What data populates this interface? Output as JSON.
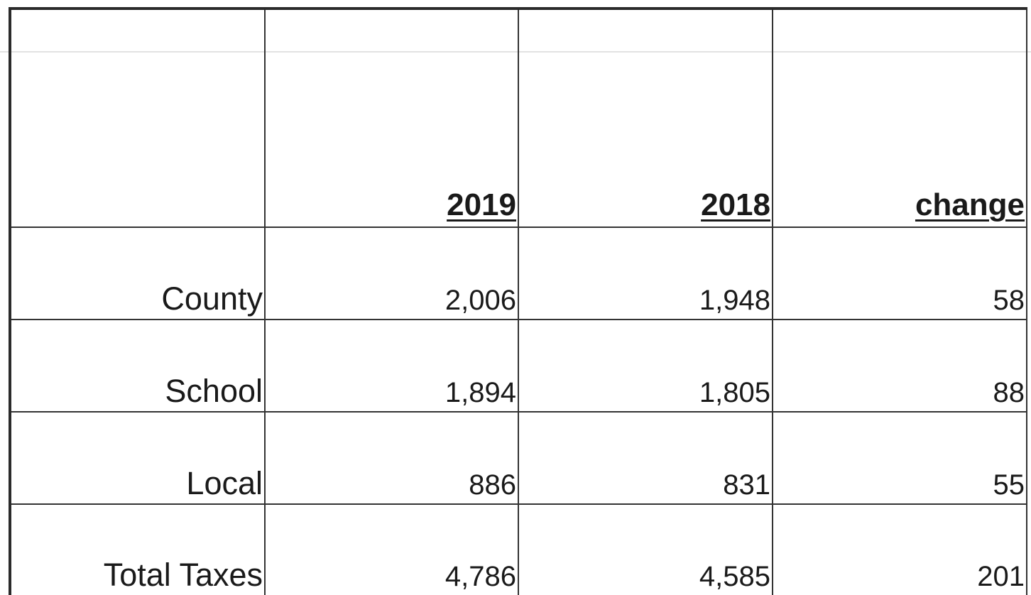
{
  "table": {
    "header": [
      "2019",
      "2018",
      "change"
    ],
    "rows": [
      [
        "County",
        "2,006",
        "1,948",
        "58"
      ],
      [
        "School",
        "1,894",
        "1,805",
        "88"
      ],
      [
        "Local",
        "886",
        "831",
        "55"
      ],
      [
        "Total Taxes",
        "4,786",
        "4,585",
        "201"
      ]
    ]
  }
}
